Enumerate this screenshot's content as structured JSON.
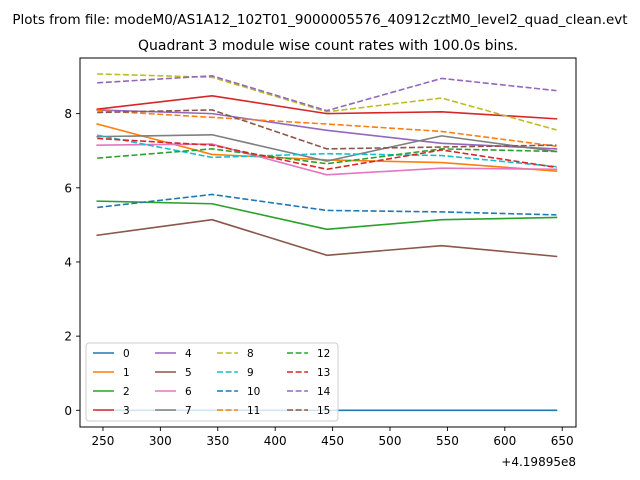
{
  "figure": {
    "suptitle": "Plots from file: modeM0/AS1A12_102T01_9000005576_40912cztM0_level2_quad_clean.evt",
    "x_offset_label": "+4.19895e8"
  },
  "chart_data": {
    "type": "line",
    "title": "Quadrant 3 module wise count rates with 100.0s bins.",
    "xlabel": "",
    "ylabel": "",
    "x": [
      245,
      345,
      445,
      545,
      645
    ],
    "xlim": [
      230,
      662
    ],
    "ylim": [
      -0.45,
      9.5
    ],
    "xticks": [
      250,
      300,
      350,
      400,
      450,
      500,
      550,
      600,
      650
    ],
    "yticks": [
      0,
      2,
      4,
      6,
      8
    ],
    "grid": false,
    "legend": {
      "position": "lower-left",
      "columns": 4
    },
    "series": [
      {
        "name": "0",
        "color": "#1f77b4",
        "dash": "solid",
        "values": [
          0.0,
          0.0,
          0.0,
          0.0,
          0.0
        ]
      },
      {
        "name": "1",
        "color": "#ff7f0e",
        "dash": "solid",
        "values": [
          7.72,
          6.9,
          6.75,
          6.68,
          6.45
        ]
      },
      {
        "name": "2",
        "color": "#2ca02c",
        "dash": "solid",
        "values": [
          5.64,
          5.57,
          4.88,
          5.14,
          5.2
        ]
      },
      {
        "name": "3",
        "color": "#d62728",
        "dash": "solid",
        "values": [
          8.12,
          8.48,
          8.0,
          8.05,
          7.86
        ]
      },
      {
        "name": "4",
        "color": "#9467bd",
        "dash": "solid",
        "values": [
          8.1,
          8.0,
          7.55,
          7.2,
          7.05
        ]
      },
      {
        "name": "5",
        "color": "#8c564b",
        "dash": "solid",
        "values": [
          4.72,
          5.14,
          4.18,
          4.44,
          4.15
        ]
      },
      {
        "name": "6",
        "color": "#e377c2",
        "dash": "solid",
        "values": [
          7.15,
          7.18,
          6.35,
          6.53,
          6.5
        ]
      },
      {
        "name": "7",
        "color": "#7f7f7f",
        "dash": "solid",
        "values": [
          7.38,
          7.43,
          6.72,
          7.4,
          6.98
        ]
      },
      {
        "name": "8",
        "color": "#bcbd22",
        "dash": "dashed",
        "values": [
          9.07,
          8.98,
          8.05,
          8.42,
          7.56
        ]
      },
      {
        "name": "9",
        "color": "#17becf",
        "dash": "dashed",
        "values": [
          7.42,
          6.82,
          6.92,
          6.87,
          6.57
        ]
      },
      {
        "name": "10",
        "color": "#1f77b4",
        "dash": "dashed",
        "values": [
          5.47,
          5.82,
          5.39,
          5.35,
          5.27
        ]
      },
      {
        "name": "11",
        "color": "#ff7f0e",
        "dash": "dashed",
        "values": [
          8.08,
          7.9,
          7.72,
          7.52,
          7.12
        ]
      },
      {
        "name": "12",
        "color": "#2ca02c",
        "dash": "dashed",
        "values": [
          6.8,
          7.05,
          6.65,
          7.05,
          6.98
        ]
      },
      {
        "name": "13",
        "color": "#d62728",
        "dash": "dashed",
        "values": [
          7.33,
          7.15,
          6.5,
          7.02,
          6.55
        ]
      },
      {
        "name": "14",
        "color": "#9467bd",
        "dash": "dashed",
        "values": [
          8.83,
          9.02,
          8.08,
          8.95,
          8.62
        ]
      },
      {
        "name": "15",
        "color": "#8c564b",
        "dash": "dashed",
        "values": [
          8.03,
          8.1,
          7.05,
          7.1,
          7.15
        ]
      }
    ]
  }
}
